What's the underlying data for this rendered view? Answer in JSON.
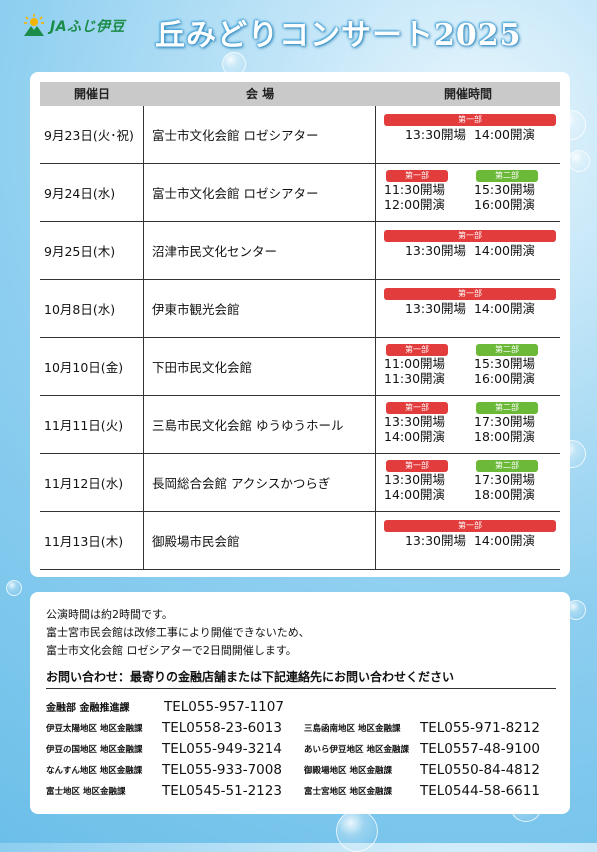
{
  "header": {
    "logo_text": "JAふじ伊豆",
    "title": "丘みどりコンサート2025"
  },
  "table": {
    "headers": {
      "date": "開催日",
      "venue": "会 場",
      "time": "開催時間"
    },
    "rows": [
      {
        "date": "9月23日(火･祝)",
        "venue": "富士市文化会館 ロゼシアター",
        "sessions": [
          {
            "label": "第一部",
            "color": "red",
            "open": "13:30開場",
            "start": "14:00開演"
          }
        ]
      },
      {
        "date": "9月24日(水)",
        "venue": "富士市文化会館 ロゼシアター",
        "sessions": [
          {
            "label": "第一部",
            "color": "red",
            "open": "11:30開場",
            "start": "12:00開演"
          },
          {
            "label": "第二部",
            "color": "green",
            "open": "15:30開場",
            "start": "16:00開演"
          }
        ]
      },
      {
        "date": "9月25日(木)",
        "venue": "沼津市民文化センター",
        "sessions": [
          {
            "label": "第一部",
            "color": "red",
            "open": "13:30開場",
            "start": "14:00開演"
          }
        ]
      },
      {
        "date": "10月8日(水)",
        "venue": "伊東市観光会館",
        "sessions": [
          {
            "label": "第一部",
            "color": "red",
            "open": "13:30開場",
            "start": "14:00開演"
          }
        ]
      },
      {
        "date": "10月10日(金)",
        "venue": "下田市民文化会館",
        "sessions": [
          {
            "label": "第一部",
            "color": "red",
            "open": "11:00開場",
            "start": "11:30開演"
          },
          {
            "label": "第二部",
            "color": "green",
            "open": "15:30開場",
            "start": "16:00開演"
          }
        ]
      },
      {
        "date": "11月11日(火)",
        "venue": "三島市民文化会館 ゆうゆうホール",
        "sessions": [
          {
            "label": "第一部",
            "color": "red",
            "open": "13:30開場",
            "start": "14:00開演"
          },
          {
            "label": "第二部",
            "color": "green",
            "open": "17:30開場",
            "start": "18:00開演"
          }
        ]
      },
      {
        "date": "11月12日(水)",
        "venue": "長岡総合会館 アクシスかつらぎ",
        "sessions": [
          {
            "label": "第一部",
            "color": "red",
            "open": "13:30開場",
            "start": "14:00開演"
          },
          {
            "label": "第二部",
            "color": "green",
            "open": "17:30開場",
            "start": "18:00開演"
          }
        ]
      },
      {
        "date": "11月13日(木)",
        "venue": "御殿場市民会館",
        "sessions": [
          {
            "label": "第一部",
            "color": "red",
            "open": "13:30開場",
            "start": "14:00開演"
          }
        ]
      }
    ]
  },
  "info": {
    "notes": [
      "公演時間は約2時間です。",
      "富士宮市民会館は改修工事により開催できないため、",
      "富士市文化会館 ロゼシアターで2日間開催します。"
    ],
    "inquiry": "お問い合わせ：最寄りの金融店舗または下記連絡先にお問い合わせください",
    "main_contact": {
      "dept": "金融部 金融推進課",
      "tel": "TEL055-957-1107"
    },
    "contacts": [
      [
        {
          "dept": "伊豆太陽地区 地区金融課",
          "tel": "TEL0558-23-6013"
        },
        {
          "dept": "三島函南地区 地区金融課",
          "tel": "TEL055-971-8212"
        }
      ],
      [
        {
          "dept": "伊豆の国地区 地区金融課",
          "tel": "TEL055-949-3214"
        },
        {
          "dept": "あいら伊豆地区 地区金融課",
          "tel": "TEL0557-48-9100"
        }
      ],
      [
        {
          "dept": "なんすん地区 地区金融課",
          "tel": "TEL055-933-7008"
        },
        {
          "dept": "御殿場地区 地区金融課",
          "tel": "TEL0550-84-4812"
        }
      ],
      [
        {
          "dept": "富士地区 地区金融課",
          "tel": "TEL0545-51-2123"
        },
        {
          "dept": "富士宮地区 地区金融課",
          "tel": "TEL0544-58-6611"
        }
      ]
    ]
  },
  "colors": {
    "red_tag": "#e23c3c",
    "green_tag": "#6cb93a",
    "logo": "#1c8c4a"
  }
}
